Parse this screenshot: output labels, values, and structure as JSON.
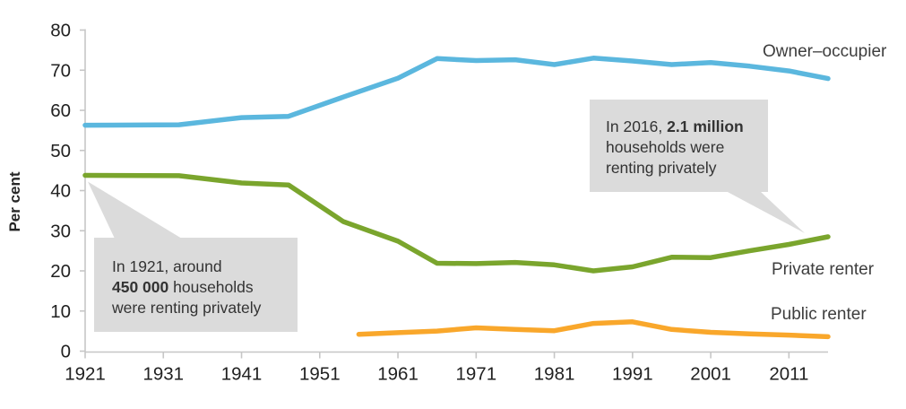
{
  "ylabel": "Per cent",
  "labels": {
    "owner": "Owner–occupier",
    "private": "Private renter",
    "public": "Public renter"
  },
  "callouts": {
    "c1921": {
      "lines": [
        [
          {
            "t": "In 1921, around"
          }
        ],
        [
          {
            "t": "450 000",
            "b": true
          },
          {
            "t": " households"
          }
        ],
        [
          {
            "t": "were renting privately"
          }
        ]
      ]
    },
    "c2016": {
      "lines": [
        [
          {
            "t": "In 2016, "
          },
          {
            "t": "2.1 million",
            "b": true
          }
        ],
        [
          {
            "t": "households were"
          }
        ],
        [
          {
            "t": "renting privately"
          }
        ]
      ]
    }
  },
  "colors": {
    "owner_occupier": "#5bb7de",
    "private_renter": "#7aa52d",
    "public_renter": "#f9a72b",
    "callout_bg": "#dbdbdb",
    "axis": "#c6c6c6",
    "tick_text": "#212121"
  },
  "chart_data": {
    "type": "line",
    "title": "",
    "xlabel": "",
    "ylabel": "Per cent",
    "xlim": [
      1921,
      2016
    ],
    "ylim": [
      0,
      80
    ],
    "x_ticks": [
      1921,
      1931,
      1941,
      1951,
      1961,
      1971,
      1981,
      1991,
      2001,
      2011
    ],
    "y_ticks": [
      0,
      10,
      20,
      30,
      40,
      50,
      60,
      70,
      80
    ],
    "grid": false,
    "legend_position": "inline-right",
    "series": [
      {
        "name": "Owner–occupier",
        "color": "#5bb7de",
        "x": [
          1921,
          1933,
          1941,
          1947,
          1954,
          1961,
          1966,
          1971,
          1976,
          1981,
          1986,
          1991,
          1996,
          2001,
          2006,
          2011,
          2016
        ],
        "values": [
          56.3,
          56.4,
          58.2,
          58.5,
          63.3,
          68.0,
          72.9,
          72.4,
          72.6,
          71.4,
          73.0,
          72.3,
          71.4,
          71.9,
          71.0,
          69.8,
          67.9
        ]
      },
      {
        "name": "Private renter",
        "color": "#7aa52d",
        "x": [
          1921,
          1933,
          1941,
          1947,
          1954,
          1961,
          1966,
          1971,
          1976,
          1981,
          1986,
          1991,
          1996,
          2001,
          2006,
          2011,
          2016
        ],
        "values": [
          43.8,
          43.7,
          41.9,
          41.4,
          32.3,
          27.4,
          21.9,
          21.8,
          22.1,
          21.5,
          20.0,
          21.0,
          23.4,
          23.3,
          25.0,
          26.6,
          28.5
        ]
      },
      {
        "name": "Public renter",
        "color": "#f9a72b",
        "x": [
          1956,
          1961,
          1966,
          1971,
          1976,
          1981,
          1986,
          1991,
          1996,
          2001,
          2006,
          2011,
          2016
        ],
        "values": [
          4.2,
          4.6,
          5.0,
          5.8,
          5.4,
          5.1,
          6.9,
          7.3,
          5.4,
          4.7,
          4.3,
          4.0,
          3.6
        ]
      }
    ],
    "annotations": [
      {
        "text": "In 1921, around 450 000 households were renting privately",
        "target_year": 1921,
        "target_value": 43.8
      },
      {
        "text": "In 2016, 2.1 million households were renting privately",
        "target_year": 2016,
        "target_value": 28.5
      }
    ]
  }
}
